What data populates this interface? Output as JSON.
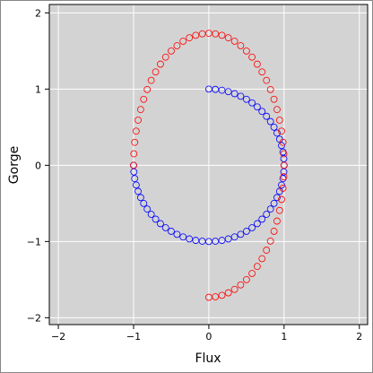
{
  "chart_data": {
    "type": "scatter",
    "xlabel": "Flux",
    "ylabel": "Gorge",
    "xlim": [
      -2.12,
      2.11
    ],
    "ylim": [
      -2.09,
      2.11
    ],
    "xticks": [
      {
        "value": -2,
        "label": "−2"
      },
      {
        "value": -1,
        "label": "−1"
      },
      0,
      1,
      2
    ],
    "yticks": [
      {
        "value": -2,
        "label": "−2"
      },
      {
        "value": -1,
        "label": "−1"
      },
      0,
      1,
      2
    ],
    "grid": true,
    "background": "#d3d3d3",
    "series": [
      {
        "color": "#0000ff",
        "x": [
          0,
          0.087,
          0.174,
          0.259,
          0.342,
          0.423,
          0.5,
          0.574,
          0.643,
          0.707,
          0.766,
          0.819,
          0.866,
          0.906,
          0.94,
          0.966,
          0.985,
          0.996,
          1,
          0.996,
          0.985,
          0.966,
          0.94,
          0.906,
          0.866,
          0.819,
          0.766,
          0.707,
          0.643,
          0.574,
          0.5,
          0.423,
          0.342,
          0.259,
          0.174,
          0.087,
          0,
          -0.087,
          -0.174,
          -0.259,
          -0.342,
          -0.423,
          -0.5,
          -0.574,
          -0.643,
          -0.707,
          -0.766,
          -0.819,
          -0.866,
          -0.906,
          -0.94,
          -0.966,
          -0.985,
          -0.996,
          -1
        ],
        "y": [
          1,
          0.996,
          0.985,
          0.966,
          0.94,
          0.906,
          0.866,
          0.819,
          0.766,
          0.707,
          0.643,
          0.574,
          0.5,
          0.423,
          0.342,
          0.259,
          0.174,
          0.087,
          0,
          -0.087,
          -0.174,
          -0.259,
          -0.342,
          -0.423,
          -0.5,
          -0.574,
          -0.643,
          -0.707,
          -0.766,
          -0.819,
          -0.866,
          -0.906,
          -0.94,
          -0.966,
          -0.985,
          -0.996,
          -1,
          -0.996,
          -0.985,
          -0.966,
          -0.94,
          -0.906,
          -0.866,
          -0.819,
          -0.766,
          -0.707,
          -0.643,
          -0.574,
          -0.5,
          -0.423,
          -0.342,
          -0.259,
          -0.174,
          -0.087,
          0
        ]
      },
      {
        "color": "#ff0000",
        "x": [
          0,
          0.087,
          0.174,
          0.259,
          0.342,
          0.423,
          0.5,
          0.574,
          0.643,
          0.707,
          0.766,
          0.819,
          0.866,
          0.906,
          0.94,
          0.966,
          0.985,
          0.996,
          1,
          0.996,
          0.985,
          0.966,
          0.94,
          0.906,
          0.866,
          0.819,
          0.766,
          0.707,
          0.643,
          0.574,
          0.5,
          0.423,
          0.342,
          0.259,
          0.174,
          0.087,
          0,
          -0.087,
          -0.174,
          -0.259,
          -0.342,
          -0.423,
          -0.5,
          -0.574,
          -0.643,
          -0.707,
          -0.766,
          -0.819,
          -0.866,
          -0.906,
          -0.94,
          -0.966,
          -0.985,
          -0.996,
          -1
        ],
        "y": [
          -1.732,
          -1.725,
          -1.706,
          -1.673,
          -1.628,
          -1.569,
          -1.5,
          -1.419,
          -1.327,
          -1.225,
          -1.114,
          -0.994,
          -0.866,
          -0.732,
          -0.592,
          -0.448,
          -0.301,
          -0.151,
          0,
          0.151,
          0.301,
          0.448,
          0.592,
          0.732,
          0.866,
          0.994,
          1.114,
          1.225,
          1.327,
          1.419,
          1.5,
          1.569,
          1.628,
          1.673,
          1.706,
          1.725,
          1.732,
          1.725,
          1.706,
          1.673,
          1.628,
          1.569,
          1.5,
          1.419,
          1.327,
          1.225,
          1.114,
          0.994,
          0.866,
          0.732,
          0.592,
          0.448,
          0.301,
          0.151,
          0
        ]
      }
    ]
  }
}
